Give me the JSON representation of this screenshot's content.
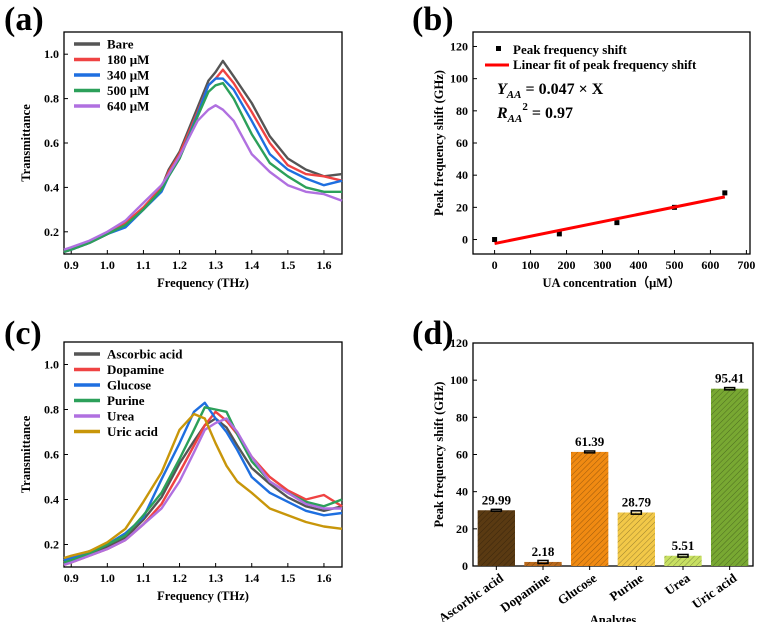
{
  "chart_data": [
    {
      "panel": "(a)",
      "type": "line",
      "xlabel": "Frequency (THz)",
      "ylabel": "Transmittance",
      "xlim": [
        0.88,
        1.65
      ],
      "ylim": [
        0.1,
        1.1
      ],
      "xticks": [
        "0.9",
        "1.0",
        "1.1",
        "1.2",
        "1.3",
        "1.4",
        "1.5",
        "1.6"
      ],
      "yticks": [
        "0.2",
        "0.4",
        "0.6",
        "0.8",
        "1.0"
      ],
      "legend_position": "top-left",
      "x": [
        0.88,
        0.9,
        0.95,
        1.0,
        1.05,
        1.1,
        1.15,
        1.17,
        1.2,
        1.25,
        1.28,
        1.3,
        1.32,
        1.35,
        1.4,
        1.45,
        1.5,
        1.55,
        1.6,
        1.65
      ],
      "series": [
        {
          "name": "Bare",
          "color": "#555555",
          "values": [
            0.11,
            0.12,
            0.15,
            0.19,
            0.23,
            0.3,
            0.4,
            0.48,
            0.56,
            0.76,
            0.88,
            0.92,
            0.97,
            0.9,
            0.78,
            0.63,
            0.53,
            0.48,
            0.45,
            0.46
          ]
        },
        {
          "name": "180 μM",
          "color": "#ef4343",
          "values": [
            0.11,
            0.12,
            0.15,
            0.19,
            0.24,
            0.31,
            0.4,
            0.47,
            0.55,
            0.74,
            0.86,
            0.89,
            0.93,
            0.87,
            0.74,
            0.6,
            0.5,
            0.46,
            0.45,
            0.43
          ]
        },
        {
          "name": "340 μM",
          "color": "#1e6fe0",
          "values": [
            0.11,
            0.12,
            0.15,
            0.19,
            0.22,
            0.3,
            0.38,
            0.45,
            0.53,
            0.73,
            0.86,
            0.89,
            0.89,
            0.84,
            0.7,
            0.55,
            0.48,
            0.44,
            0.41,
            0.43
          ]
        },
        {
          "name": "500 μM",
          "color": "#2ca05a",
          "values": [
            0.11,
            0.12,
            0.15,
            0.19,
            0.23,
            0.3,
            0.39,
            0.45,
            0.53,
            0.72,
            0.83,
            0.86,
            0.87,
            0.8,
            0.64,
            0.51,
            0.45,
            0.4,
            0.38,
            0.38
          ]
        },
        {
          "name": "640 μM",
          "color": "#b070e0",
          "values": [
            0.12,
            0.13,
            0.16,
            0.2,
            0.25,
            0.33,
            0.41,
            0.46,
            0.54,
            0.7,
            0.75,
            0.77,
            0.75,
            0.7,
            0.55,
            0.47,
            0.41,
            0.38,
            0.37,
            0.34
          ]
        }
      ]
    },
    {
      "panel": "(b)",
      "type": "scatter",
      "xlabel": "UA concentration（μM）",
      "ylabel": "Peak frequency shift (GHz)",
      "xlim": [
        -60,
        710
      ],
      "ylim": [
        -9,
        129
      ],
      "xticks": [
        "0",
        "100",
        "200",
        "300",
        "400",
        "500",
        "600",
        "700"
      ],
      "yticks": [
        "0",
        "20",
        "40",
        "60",
        "80",
        "100",
        "120"
      ],
      "legend_position": "top",
      "points": {
        "name": "Peak frequency shift",
        "color": "#000000",
        "x": [
          0,
          180,
          340,
          500,
          640
        ],
        "y": [
          0,
          3.5,
          10.5,
          20,
          29
        ],
        "err": [
          0.5,
          0.8,
          0.8,
          0.5,
          1.5
        ]
      },
      "fit": {
        "name": "Linear fit of peak frequency shift",
        "color": "#ff0000",
        "x": [
          0,
          640
        ],
        "y": [
          -2.5,
          26.5
        ]
      },
      "annotations": {
        "eq_main": "Y",
        "eq_sub": "AA",
        "eq_rest": " = 0.047 × X",
        "r_main": "R",
        "r_sub": "AA",
        "r_sup": "2",
        "r_rest": " = 0.97"
      }
    },
    {
      "panel": "(c)",
      "type": "line",
      "xlabel": "Frequency (THz)",
      "ylabel": "Transmittance",
      "xlim": [
        0.88,
        1.65
      ],
      "ylim": [
        0.1,
        1.1
      ],
      "xticks": [
        "0.9",
        "1.0",
        "1.1",
        "1.2",
        "1.3",
        "1.4",
        "1.5",
        "1.6"
      ],
      "yticks": [
        "0.2",
        "0.4",
        "0.6",
        "0.8",
        "1.0"
      ],
      "legend_position": "top-left",
      "x": [
        0.88,
        0.9,
        0.95,
        1.0,
        1.05,
        1.1,
        1.15,
        1.2,
        1.24,
        1.27,
        1.3,
        1.33,
        1.36,
        1.4,
        1.45,
        1.5,
        1.55,
        1.6,
        1.65
      ],
      "series": [
        {
          "name": "Ascorbic acid",
          "color": "#555555",
          "values": [
            0.12,
            0.13,
            0.16,
            0.19,
            0.23,
            0.31,
            0.41,
            0.56,
            0.66,
            0.73,
            0.76,
            0.72,
            0.64,
            0.54,
            0.47,
            0.41,
            0.37,
            0.35,
            0.37
          ]
        },
        {
          "name": "Dopamine",
          "color": "#ef4343",
          "values": [
            0.11,
            0.12,
            0.15,
            0.18,
            0.22,
            0.29,
            0.38,
            0.52,
            0.64,
            0.73,
            0.79,
            0.75,
            0.69,
            0.59,
            0.5,
            0.44,
            0.4,
            0.42,
            0.37
          ]
        },
        {
          "name": "Glucose",
          "color": "#1e6fe0",
          "values": [
            0.13,
            0.14,
            0.17,
            0.2,
            0.25,
            0.32,
            0.49,
            0.65,
            0.79,
            0.83,
            0.76,
            0.7,
            0.62,
            0.5,
            0.43,
            0.39,
            0.35,
            0.33,
            0.34
          ]
        },
        {
          "name": "Purine",
          "color": "#2ca05a",
          "values": [
            0.12,
            0.13,
            0.16,
            0.2,
            0.24,
            0.33,
            0.43,
            0.58,
            0.71,
            0.81,
            0.8,
            0.79,
            0.69,
            0.57,
            0.48,
            0.43,
            0.39,
            0.37,
            0.4
          ]
        },
        {
          "name": "Urea",
          "color": "#b070e0",
          "values": [
            0.11,
            0.12,
            0.15,
            0.18,
            0.22,
            0.29,
            0.36,
            0.48,
            0.61,
            0.71,
            0.74,
            0.76,
            0.7,
            0.59,
            0.48,
            0.43,
            0.38,
            0.36,
            0.36
          ]
        },
        {
          "name": "Uric acid",
          "color": "#c8960a",
          "values": [
            0.14,
            0.15,
            0.17,
            0.21,
            0.27,
            0.39,
            0.52,
            0.71,
            0.78,
            0.76,
            0.65,
            0.55,
            0.48,
            0.43,
            0.36,
            0.33,
            0.3,
            0.28,
            0.27
          ]
        }
      ]
    },
    {
      "panel": "(d)",
      "type": "bar",
      "xlabel": "Analytes",
      "ylabel": "Peak frequency shift (GHz)",
      "ylim": [
        0,
        120
      ],
      "yticks": [
        "0",
        "20",
        "40",
        "60",
        "80",
        "100",
        "120"
      ],
      "categories": [
        "Ascorbic acid",
        "Dopamine",
        "Glucose",
        "Purine",
        "Urea",
        "Uric acid"
      ],
      "values": [
        29.99,
        2.18,
        61.39,
        28.79,
        5.51,
        95.41
      ],
      "labels": [
        "29.99",
        "2.18",
        "61.39",
        "28.79",
        "5.51",
        "95.41"
      ],
      "err": [
        0.5,
        0.8,
        0.5,
        0.9,
        0.7,
        0.6
      ],
      "colors": [
        "#5a3a12",
        "#b8691c",
        "#f08a12",
        "#f2c848",
        "#c8e062",
        "#78a832"
      ]
    }
  ]
}
